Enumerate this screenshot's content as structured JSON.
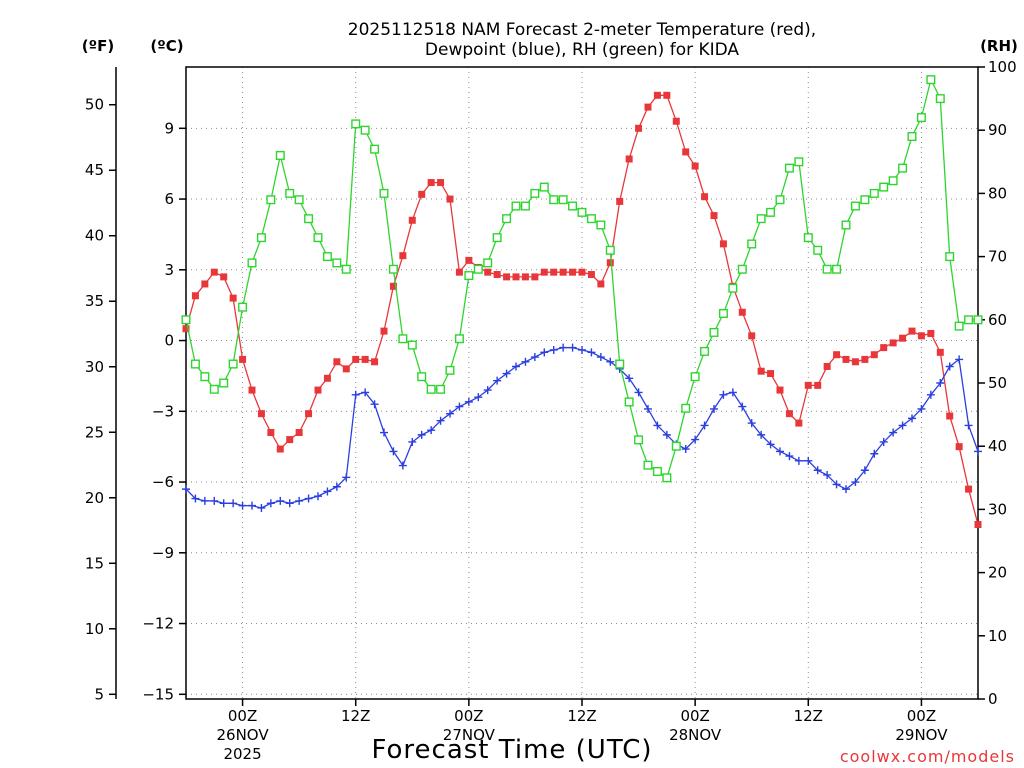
{
  "title_line1": "2025112518 NAM Forecast 2-meter Temperature (red),",
  "title_line2": "Dewpoint (blue), RH (green) for KIDA",
  "unit_f": "(ºF)",
  "unit_c": "(ºC)",
  "unit_rh": "(RH)",
  "xlabel": "Forecast Time (UTC)",
  "credit": "coolwx.com/models",
  "colors": {
    "temperature": "#e8373a",
    "dewpoint": "#2b3fe0",
    "rh": "#2ed52e",
    "grid": "#8c8c8c"
  },
  "chart_data": {
    "type": "line",
    "x_unit": "hour offset from 2025-11-25 18Z",
    "x": [
      0,
      1,
      2,
      3,
      4,
      5,
      6,
      7,
      8,
      9,
      10,
      11,
      12,
      13,
      14,
      15,
      16,
      17,
      18,
      19,
      20,
      21,
      22,
      23,
      24,
      25,
      26,
      27,
      28,
      29,
      30,
      31,
      32,
      33,
      34,
      35,
      36,
      37,
      38,
      39,
      40,
      41,
      42,
      43,
      44,
      45,
      46,
      47,
      48,
      49,
      50,
      51,
      52,
      53,
      54,
      55,
      56,
      57,
      58,
      59,
      60,
      61,
      62,
      63,
      64,
      65,
      66,
      67,
      68,
      69,
      70,
      71,
      72,
      73,
      74,
      75,
      76,
      77,
      78,
      79,
      80,
      81,
      82,
      83,
      84
    ],
    "xlim": [
      0,
      84
    ],
    "x_ticks": [
      {
        "x": 6,
        "label": "00Z",
        "sub1": "26NOV",
        "sub2": "2025"
      },
      {
        "x": 18,
        "label": "12Z",
        "sub1": "",
        "sub2": ""
      },
      {
        "x": 30,
        "label": "00Z",
        "sub1": "27NOV",
        "sub2": ""
      },
      {
        "x": 42,
        "label": "12Z",
        "sub1": "",
        "sub2": ""
      },
      {
        "x": 54,
        "label": "00Z",
        "sub1": "28NOV",
        "sub2": ""
      },
      {
        "x": 66,
        "label": "12Z",
        "sub1": "",
        "sub2": ""
      },
      {
        "x": 78,
        "label": "00Z",
        "sub1": "29NOV",
        "sub2": ""
      }
    ],
    "y_left_c": {
      "range": [
        -15.2,
        11.6
      ],
      "ticks": [
        -15,
        -12,
        -9,
        -6,
        -3,
        0,
        3,
        6,
        9
      ]
    },
    "y_left_f": {
      "ticks": [
        5,
        10,
        15,
        20,
        25,
        30,
        35,
        40,
        45,
        50
      ]
    },
    "y_right_rh": {
      "range": [
        0,
        100
      ],
      "ticks": [
        0,
        10,
        20,
        30,
        40,
        50,
        60,
        70,
        80,
        90,
        100
      ]
    },
    "grid": true,
    "series": [
      {
        "key": "temperature",
        "axis": "c",
        "marker": "filled-square",
        "values": [
          0.5,
          1.9,
          2.4,
          2.9,
          2.7,
          1.8,
          -0.8,
          -2.1,
          -3.1,
          -3.9,
          -4.6,
          -4.2,
          -3.9,
          -3.1,
          -2.1,
          -1.6,
          -0.9,
          -1.2,
          -0.8,
          -0.8,
          -0.9,
          0.4,
          2.3,
          3.6,
          5.1,
          6.2,
          6.7,
          6.7,
          6.0,
          2.9,
          3.4,
          3.1,
          2.9,
          2.8,
          2.7,
          2.7,
          2.7,
          2.7,
          2.9,
          2.9,
          2.9,
          2.9,
          2.9,
          2.8,
          2.4,
          3.3,
          5.9,
          7.7,
          9.0,
          9.9,
          10.4,
          10.4,
          9.3,
          8.0,
          7.4,
          6.1,
          5.3,
          4.1,
          2.3,
          1.2,
          0.2,
          -1.3,
          -1.4,
          -2.1,
          -3.1,
          -3.5,
          -1.9,
          -1.9,
          -1.1,
          -0.6,
          -0.8,
          -0.9,
          -0.8,
          -0.6,
          -0.3,
          -0.1,
          0.1,
          0.4,
          0.2,
          0.3,
          -0.5,
          -3.2,
          -4.5,
          -6.3,
          -7.8
        ]
      },
      {
        "key": "dewpoint",
        "axis": "c",
        "marker": "plus",
        "values": [
          -6.3,
          -6.7,
          -6.8,
          -6.8,
          -6.9,
          -6.9,
          -7.0,
          -7.0,
          -7.1,
          -6.9,
          -6.8,
          -6.9,
          -6.8,
          -6.7,
          -6.6,
          -6.4,
          -6.2,
          -5.8,
          -2.3,
          -2.2,
          -2.7,
          -3.9,
          -4.7,
          -5.3,
          -4.3,
          -4.0,
          -3.8,
          -3.4,
          -3.1,
          -2.8,
          -2.6,
          -2.4,
          -2.1,
          -1.7,
          -1.4,
          -1.1,
          -0.9,
          -0.7,
          -0.5,
          -0.4,
          -0.3,
          -0.3,
          -0.4,
          -0.5,
          -0.7,
          -0.9,
          -1.2,
          -1.6,
          -2.2,
          -2.9,
          -3.6,
          -4.0,
          -4.4,
          -4.6,
          -4.2,
          -3.6,
          -2.9,
          -2.3,
          -2.2,
          -2.8,
          -3.5,
          -4.0,
          -4.4,
          -4.7,
          -4.9,
          -5.1,
          -5.1,
          -5.5,
          -5.7,
          -6.1,
          -6.3,
          -6.0,
          -5.5,
          -4.8,
          -4.3,
          -3.9,
          -3.6,
          -3.3,
          -2.9,
          -2.3,
          -1.8,
          -1.1,
          -0.8,
          -3.6,
          -4.7
        ]
      },
      {
        "key": "rh",
        "axis": "rh",
        "marker": "open-square",
        "values": [
          60,
          53,
          51,
          49,
          50,
          53,
          62,
          69,
          73,
          79,
          86,
          80,
          79,
          76,
          73,
          70,
          69,
          68,
          91,
          90,
          87,
          80,
          68,
          57,
          56,
          51,
          49,
          49,
          52,
          57,
          67,
          68,
          69,
          73,
          76,
          78,
          78,
          80,
          81,
          79,
          79,
          78,
          77,
          76,
          75,
          71,
          53,
          47,
          41,
          37,
          36,
          35,
          40,
          46,
          51,
          55,
          58,
          61,
          65,
          68,
          72,
          76,
          77,
          79,
          84,
          85,
          73,
          71,
          68,
          68,
          75,
          78,
          79,
          80,
          81,
          82,
          84,
          89,
          92,
          98,
          95,
          70,
          59,
          60,
          60
        ]
      }
    ]
  }
}
